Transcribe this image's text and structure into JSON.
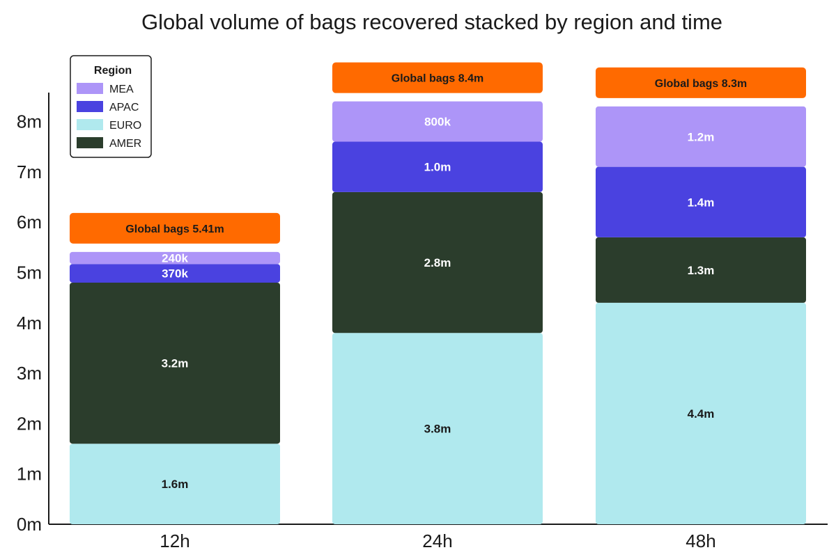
{
  "chart_data": {
    "type": "bar",
    "stacked": true,
    "title": "Global volume of bags recovered stacked by region and time",
    "xlabel": "",
    "ylabel": "",
    "categories": [
      "12h",
      "24h",
      "48h"
    ],
    "ylim": [
      0,
      8.4
    ],
    "yticks": [
      0,
      1,
      2,
      3,
      4,
      5,
      6,
      7,
      8
    ],
    "ytick_labels": [
      "0m",
      "1m",
      "2m",
      "3m",
      "4m",
      "5m",
      "6m",
      "7m",
      "8m"
    ],
    "grid": false,
    "legend": {
      "title": "Region",
      "placement": "top-left"
    },
    "series": [
      {
        "name": "EURO",
        "color": "#b0e9ee",
        "label_color": "#1a1a1a",
        "values": [
          1.6,
          3.8,
          4.4
        ],
        "labels": [
          "1.6m",
          "3.8m",
          "4.4m"
        ]
      },
      {
        "name": "AMER",
        "color": "#2b3d2c",
        "label_color": "#ffffff",
        "values": [
          3.2,
          2.8,
          1.3
        ],
        "labels": [
          "3.2m",
          "2.8m",
          "1.3m"
        ]
      },
      {
        "name": "APAC",
        "color": "#4a42e0",
        "label_color": "#ffffff",
        "values": [
          0.37,
          1.0,
          1.4
        ],
        "labels": [
          "370k",
          "1.0m",
          "1.4m"
        ]
      },
      {
        "name": "MEA",
        "color": "#ad95f8",
        "label_color": "#ffffff",
        "values": [
          0.24,
          0.8,
          1.2
        ],
        "labels": [
          "240k",
          "800k",
          "1.2m"
        ]
      }
    ],
    "legend_order": [
      "MEA",
      "APAC",
      "EURO",
      "AMER"
    ],
    "totals": {
      "color": "#ff6a00",
      "labels": [
        "Global bags 5.41m",
        "Global bags 8.4m",
        "Global bags 8.3m"
      ]
    }
  }
}
